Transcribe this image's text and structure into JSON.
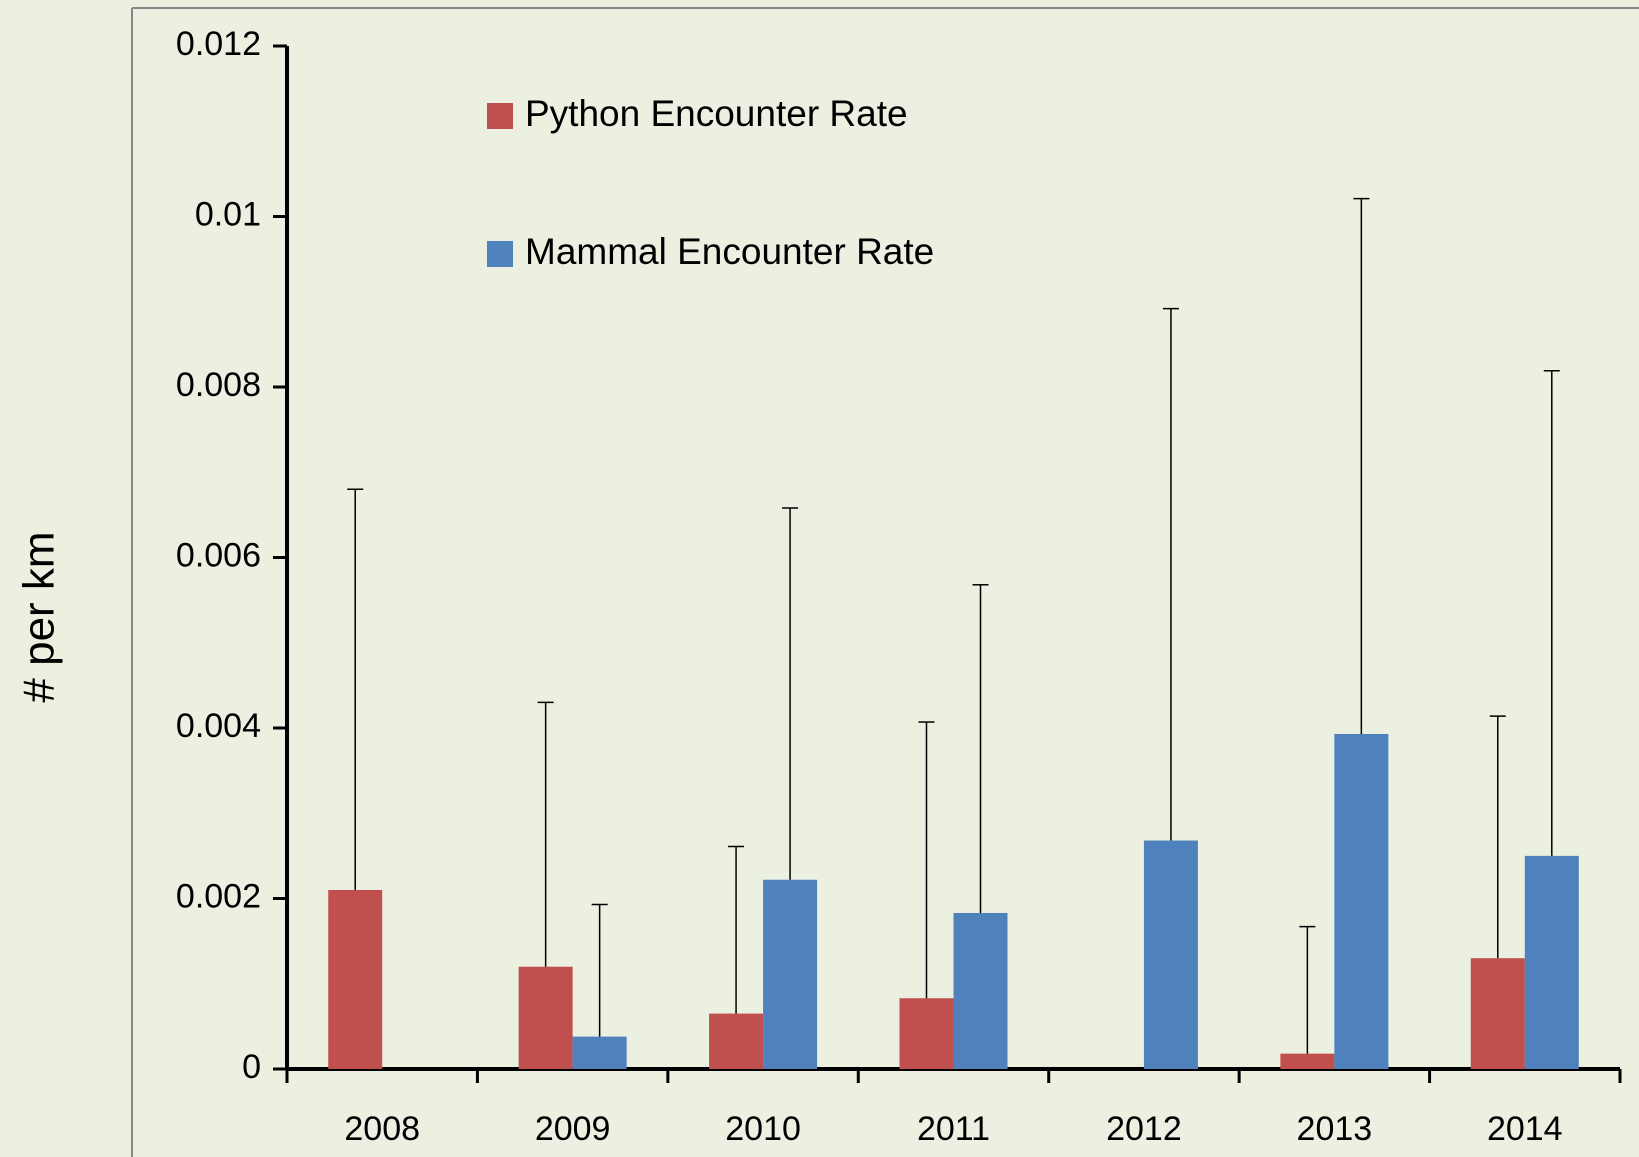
{
  "chart_data": {
    "type": "bar",
    "y_label": "# per km",
    "categories": [
      "2008",
      "2009",
      "2010",
      "2011",
      "2012",
      "2013",
      "2014"
    ],
    "series": [
      {
        "name": "Python Encounter Rate",
        "color": "#c0504d",
        "values": [
          0.0021,
          0.0012,
          0.00065,
          0.00083,
          0,
          0.00018,
          0.0013
        ],
        "errors": [
          0.0047,
          0.0031,
          0.00196,
          0.00324,
          null,
          0.00149,
          0.00284
        ]
      },
      {
        "name": "Mammal Encounter Rate",
        "color": "#4f81bd",
        "values": [
          0,
          0.00038,
          0.00222,
          0.00183,
          0.00268,
          0.00393,
          0.0025
        ],
        "errors": [
          null,
          0.00155,
          0.00436,
          0.00385,
          0.00624,
          0.00628,
          0.00569
        ]
      }
    ],
    "ylim": [
      0,
      0.012
    ],
    "yticks": [
      0,
      0.002,
      0.004,
      0.006,
      0.008,
      0.01,
      0.012
    ],
    "legend": "top-left"
  }
}
